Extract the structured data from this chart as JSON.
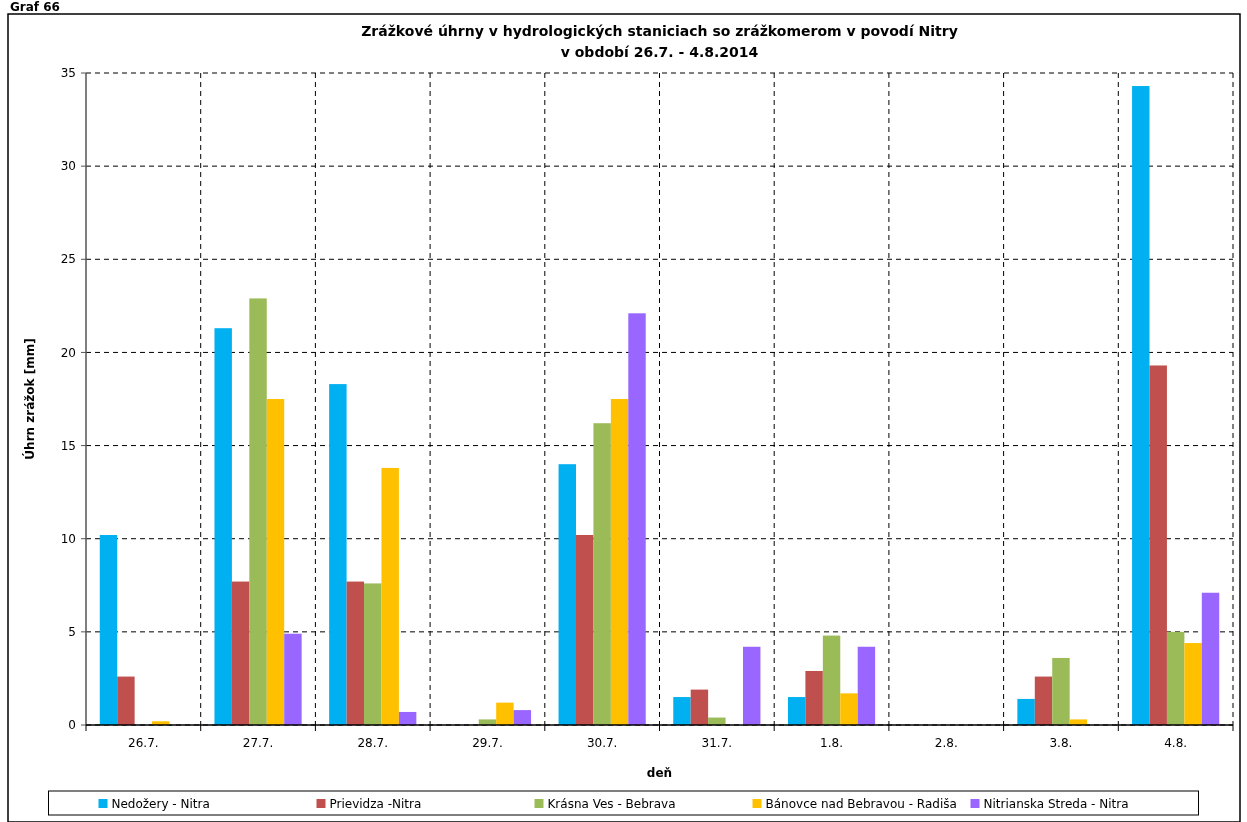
{
  "chart_data": {
    "type": "bar",
    "title": "Zrážkové úhrny v hydrologických staniciach so zrážkomerom v povodí Nitry\nv období 26.7. - 4.8.2014",
    "xlabel": "deň",
    "ylabel": "Úhrn zrážok [mm]",
    "annotations": [
      "Graf 66"
    ],
    "categories": [
      "26.7.",
      "27.7.",
      "28.7.",
      "29.7.",
      "30.7.",
      "31.7.",
      "1.8.",
      "2.8.",
      "3.8.",
      "4.8."
    ],
    "series": [
      {
        "name": "Nedožery - Nitra",
        "color": "#00b0f0",
        "values": [
          10.2,
          21.3,
          18.3,
          0,
          14.0,
          1.5,
          1.5,
          0,
          1.4,
          34.3
        ]
      },
      {
        "name": "Prievidza -Nitra",
        "color": "#c0504d",
        "values": [
          2.6,
          7.7,
          7.7,
          0,
          10.2,
          1.9,
          2.9,
          0,
          2.6,
          19.3
        ]
      },
      {
        "name": "Krásna Ves - Bebrava",
        "color": "#9bbb59",
        "values": [
          0,
          22.9,
          7.6,
          0.3,
          16.2,
          0.4,
          4.8,
          0,
          3.6,
          5.0
        ]
      },
      {
        "name": "Bánovce nad Bebravou - Radiša",
        "color": "#ffc000",
        "values": [
          0.2,
          17.5,
          13.8,
          1.2,
          17.5,
          0,
          1.7,
          0,
          0.3,
          4.4
        ]
      },
      {
        "name": "Nitrianska Streda - Nitra",
        "color": "#9966ff",
        "values": [
          0,
          4.9,
          0.7,
          0.8,
          22.1,
          4.2,
          4.2,
          0,
          0,
          7.1
        ]
      }
    ],
    "ylim": [
      0,
      35
    ],
    "yticks": [
      0,
      5,
      10,
      15,
      20,
      25,
      30,
      35
    ],
    "grid": true,
    "legend": "bottom"
  }
}
